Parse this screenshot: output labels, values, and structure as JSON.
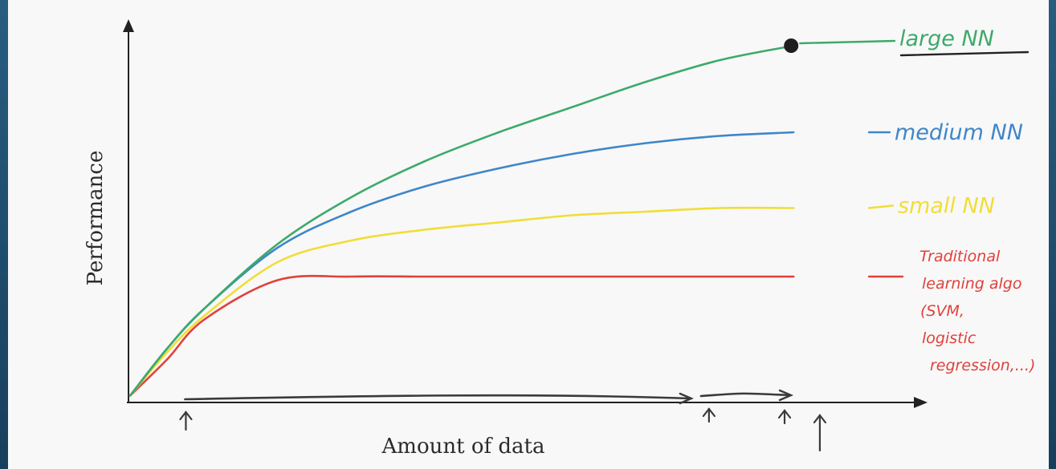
{
  "chart_data": {
    "type": "line",
    "title": "",
    "xlabel": "Amount of data",
    "ylabel": "Performance",
    "x_ticks": [],
    "y_ticks": [],
    "grid": false,
    "legend": "inline labels at right end of each curve",
    "xlim": [
      0,
      10
    ],
    "ylim": [
      0,
      10
    ],
    "x": [
      0,
      0.5,
      1,
      2,
      3,
      4,
      5,
      6,
      7,
      8,
      9
    ],
    "series": [
      {
        "name": "large NN",
        "color": "#3daa6a",
        "values": [
          0.1,
          1.4,
          2.5,
          4.3,
          5.6,
          6.6,
          7.4,
          8.1,
          8.8,
          9.4,
          9.8
        ]
      },
      {
        "name": "medium NN",
        "color": "#3f86c8",
        "values": [
          0.1,
          1.4,
          2.5,
          4.2,
          5.2,
          5.9,
          6.4,
          6.8,
          7.1,
          7.3,
          7.4
        ]
      },
      {
        "name": "small NN",
        "color": "#f1dd38",
        "values": [
          0.1,
          1.3,
          2.3,
          3.8,
          4.4,
          4.7,
          4.9,
          5.1,
          5.2,
          5.3,
          5.3
        ]
      },
      {
        "name": "Traditional learning algo (SVM, logistic regression,...)",
        "color": "#e0413b",
        "values": [
          0.1,
          1.1,
          2.2,
          3.3,
          3.4,
          3.4,
          3.4,
          3.4,
          3.4,
          3.4,
          3.4
        ]
      }
    ],
    "label_lines": {
      "large": "large NN",
      "medium": "medium NN",
      "small": "small NN",
      "traditional": [
        "Traditional",
        "learning algo",
        "(SVM,",
        "logistic",
        "regression,...)"
      ]
    },
    "annotations": {
      "range_marks_x": [
        0.8,
        7.7,
        8.9
      ],
      "endpoint_marker_series": "large NN",
      "extra_up_arrow_x": 9.4
    }
  }
}
